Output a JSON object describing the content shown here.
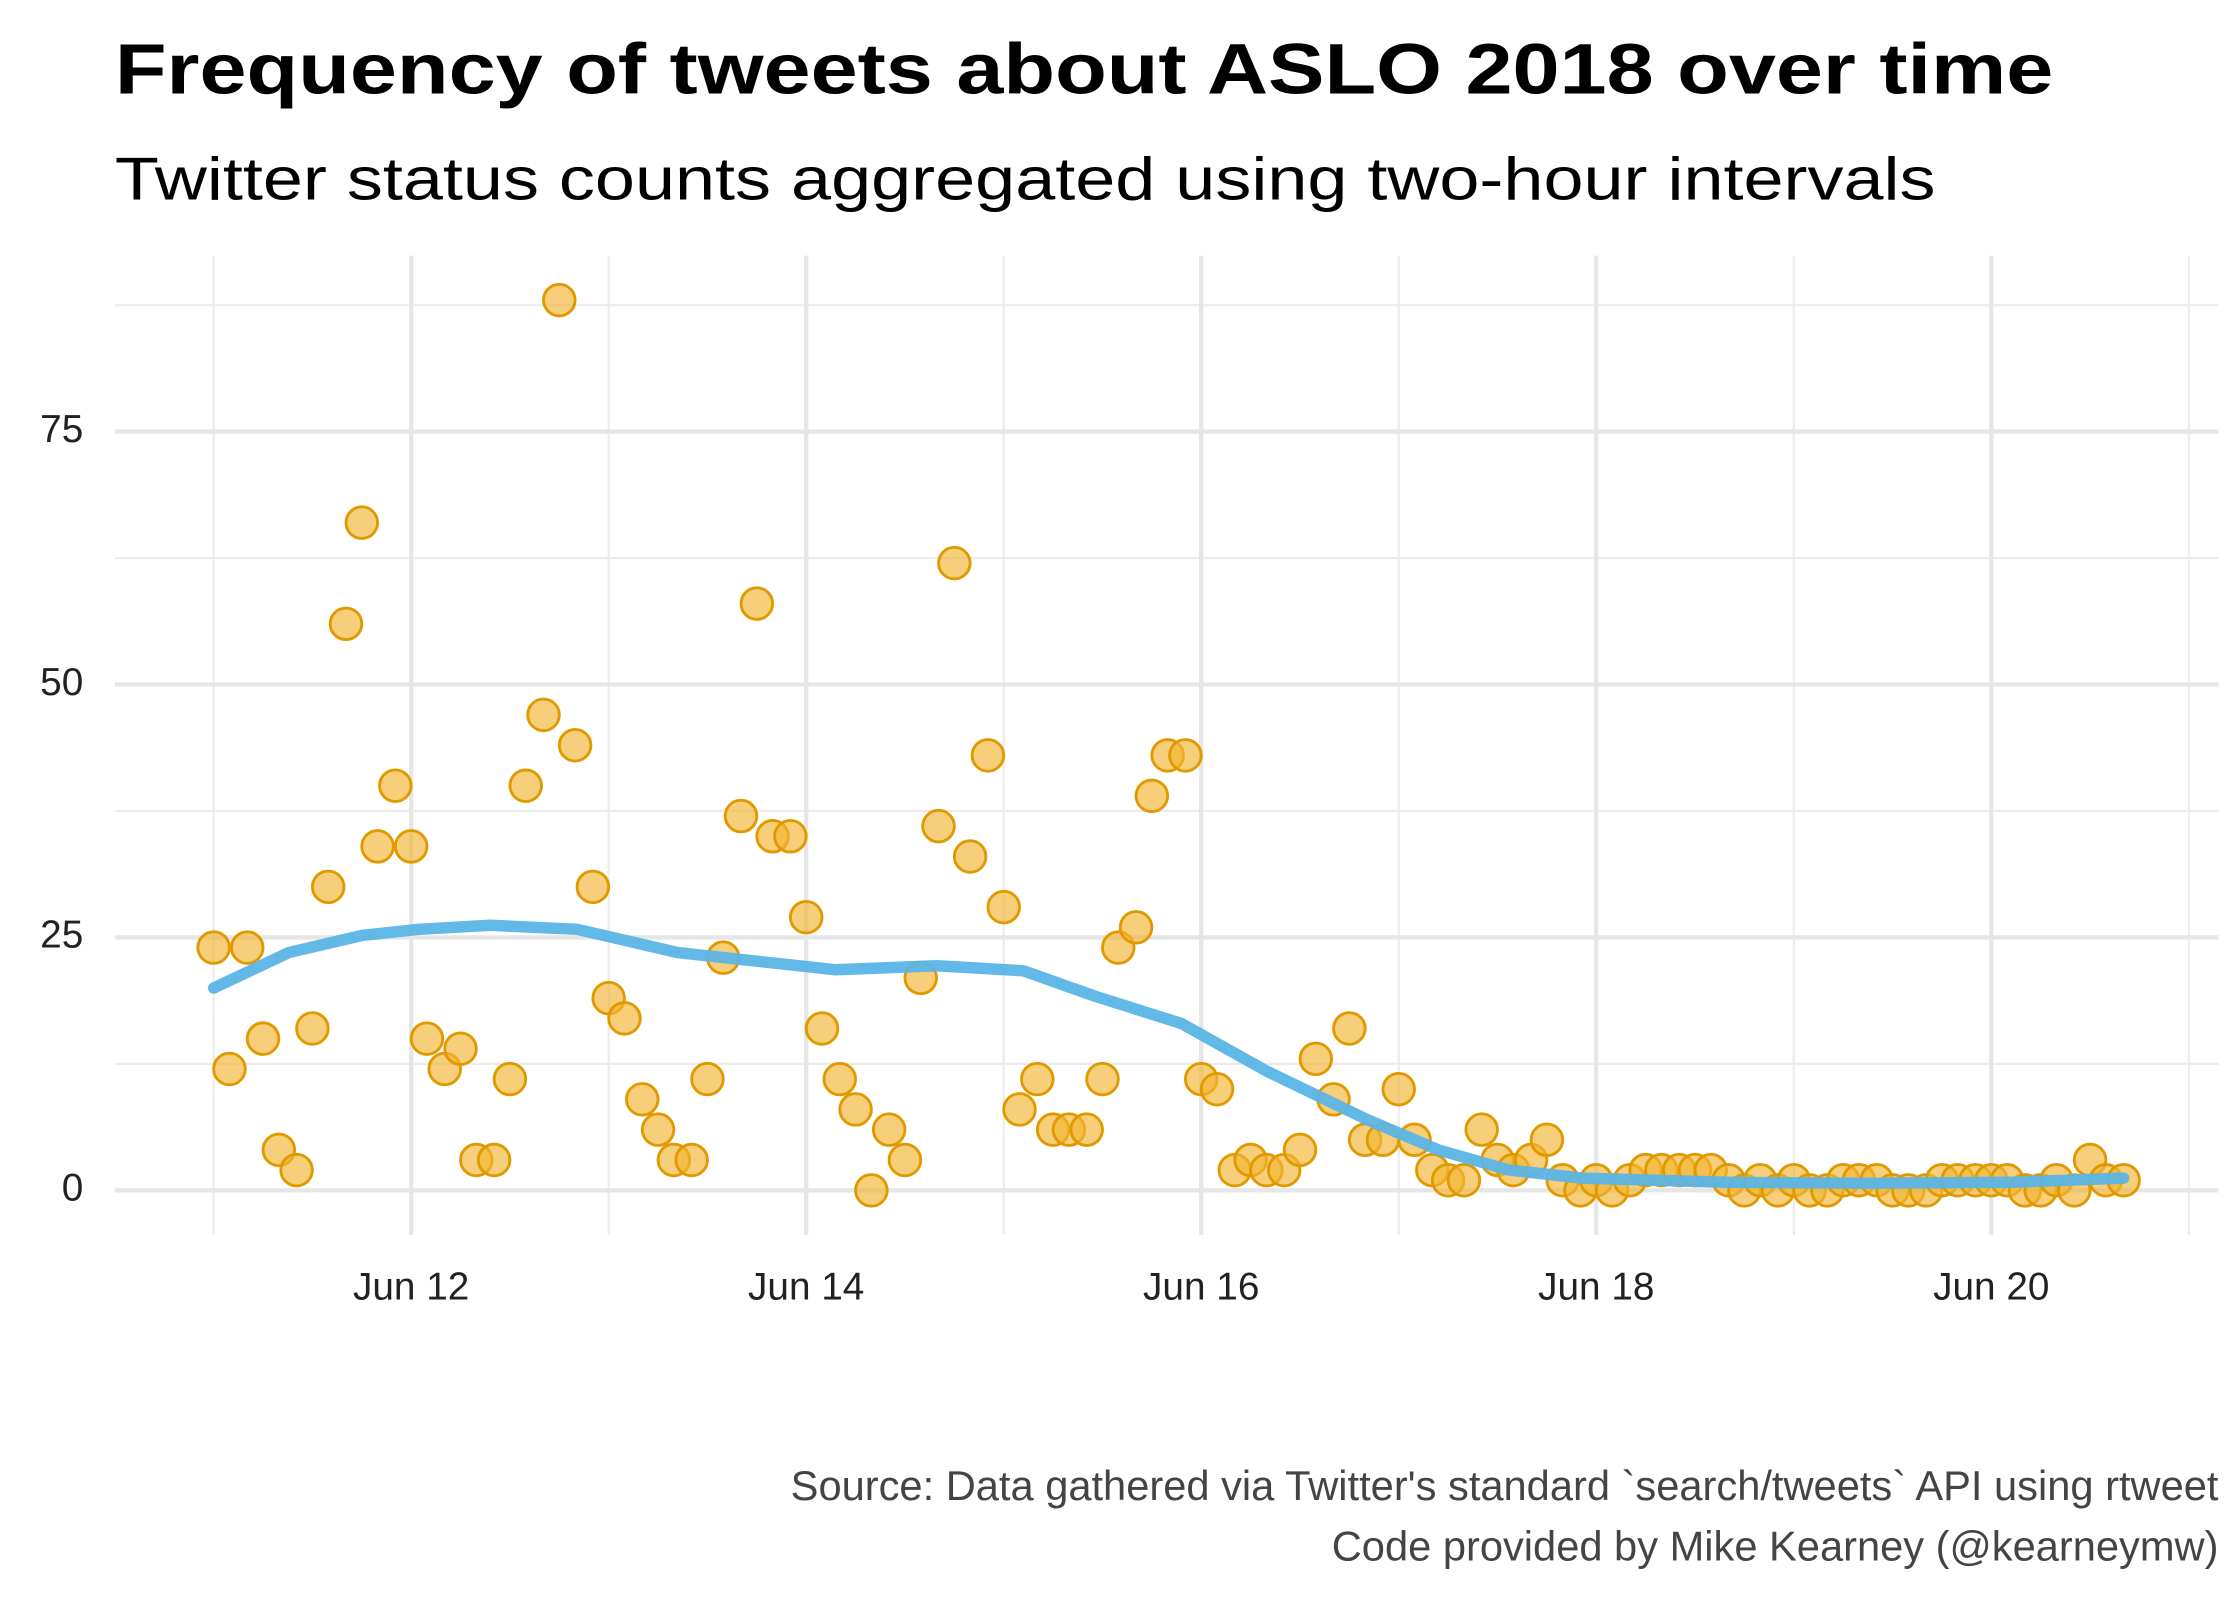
{
  "chart_data": {
    "type": "scatter",
    "title": "Frequency of tweets about ASLO 2018 over time",
    "subtitle": "Twitter status counts aggregated using two-hour intervals",
    "caption": [
      "Source: Data gathered via Twitter's standard `search/tweets` API using rtweet",
      "Code provided by Mike Kearney (@kearneymw)"
    ],
    "x": [
      11.0,
      11.08,
      11.17,
      11.25,
      11.33,
      11.42,
      11.5,
      11.58,
      11.67,
      11.75,
      11.83,
      11.92,
      12.0,
      12.08,
      12.17,
      12.25,
      12.33,
      12.42,
      12.5,
      12.58,
      12.67,
      12.75,
      12.83,
      12.92,
      13.0,
      13.08,
      13.17,
      13.25,
      13.33,
      13.42,
      13.5,
      13.58,
      13.67,
      13.75,
      13.83,
      13.92,
      14.0,
      14.08,
      14.17,
      14.25,
      14.33,
      14.42,
      14.5,
      14.58,
      14.67,
      14.75,
      14.83,
      14.92,
      15.0,
      15.08,
      15.17,
      15.25,
      15.33,
      15.42,
      15.5,
      15.58,
      15.67,
      15.75,
      15.83,
      15.92,
      16.0,
      16.08,
      16.17,
      16.25,
      16.33,
      16.42,
      16.5,
      16.58,
      16.67,
      16.75,
      16.83,
      16.92,
      17.0,
      17.08,
      17.17,
      17.25,
      17.33,
      17.42,
      17.5,
      17.58,
      17.67,
      17.75,
      17.83,
      17.92,
      18.0,
      18.08,
      18.17,
      18.25,
      18.33,
      18.42,
      18.5,
      18.58,
      18.67,
      18.75,
      18.83,
      18.92,
      19.0,
      19.08,
      19.17,
      19.25,
      19.33,
      19.42,
      19.5,
      19.58,
      19.67,
      19.75,
      19.83,
      19.92,
      20.0,
      20.08,
      20.17,
      20.25,
      20.33,
      20.42,
      20.5,
      20.58,
      20.67
    ],
    "values": [
      24,
      12,
      24,
      15,
      4,
      2,
      16,
      30,
      56,
      66,
      34,
      40,
      34,
      15,
      12,
      14,
      3,
      3,
      11,
      40,
      47,
      88,
      44,
      30,
      19,
      17,
      9,
      6,
      3,
      3,
      11,
      23,
      37,
      58,
      35,
      35,
      27,
      16,
      11,
      8,
      0,
      6,
      3,
      21,
      36,
      62,
      33,
      43,
      28,
      8,
      11,
      6,
      6,
      6,
      11,
      24,
      26,
      39,
      43,
      43,
      11,
      10,
      2,
      3,
      2,
      2,
      4,
      13,
      9,
      16,
      5,
      5,
      10,
      5,
      2,
      1,
      1,
      6,
      3,
      2,
      3,
      5,
      1,
      0,
      1,
      0,
      1,
      2,
      2,
      2,
      2,
      2,
      1,
      0,
      1,
      0,
      1,
      0,
      0,
      1,
      1,
      1,
      0,
      0,
      0,
      1,
      1,
      1,
      1,
      1,
      0,
      0,
      1,
      0,
      3,
      1,
      1
    ],
    "color": "#f2b632",
    "edge_color": "#e09a00",
    "smooth": {
      "x": [
        11.0,
        11.38,
        11.75,
        12.04,
        12.4,
        12.84,
        13.35,
        14.15,
        14.66,
        15.1,
        15.46,
        15.9,
        16.33,
        16.84,
        17.2,
        17.56,
        17.93,
        18.65,
        19.38,
        20.1,
        20.67
      ],
      "values": [
        20,
        23.5,
        25.2,
        25.8,
        26.2,
        25.8,
        23.5,
        21.8,
        22.2,
        21.7,
        19.2,
        16.5,
        11.8,
        7,
        4,
        2,
        1.2,
        0.8,
        0.7,
        0.8,
        1.2
      ],
      "color": "#5ab4e5"
    },
    "xlim": [
      10.5,
      21.15
    ],
    "xticks": [
      {
        "value": 12,
        "label": "Jun 12"
      },
      {
        "value": 14,
        "label": "Jun 14"
      },
      {
        "value": 16,
        "label": "Jun 16"
      },
      {
        "value": 18,
        "label": "Jun 18"
      },
      {
        "value": 20,
        "label": "Jun 20"
      }
    ],
    "xminor": [
      11,
      13,
      15,
      17,
      19,
      21
    ],
    "ylim": [
      -4.4,
      92.4
    ],
    "yticks": [
      0,
      25,
      50,
      75
    ],
    "yminor": [
      12.5,
      37.5,
      62.5,
      87.5
    ],
    "grid": true
  }
}
